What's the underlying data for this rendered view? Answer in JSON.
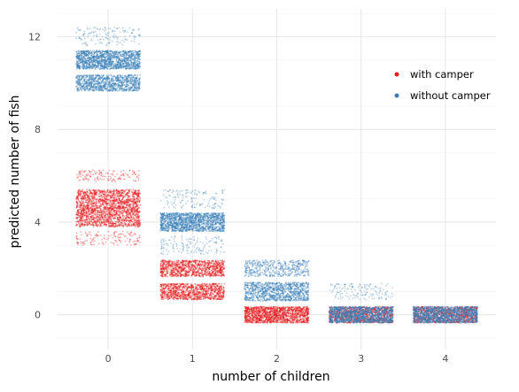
{
  "chart_data": {
    "type": "scatter",
    "title": "",
    "xlabel": "number of children",
    "ylabel": "predicted number of fish",
    "x_categories": [
      0,
      1,
      2,
      3,
      4
    ],
    "xlim": [
      -0.6,
      4.6
    ],
    "ylim": [
      -1.5,
      13.2
    ],
    "y_ticks": [
      0,
      4,
      8,
      12
    ],
    "grid": true,
    "jitter": true,
    "legend": {
      "placement": "right-top"
    },
    "series": [
      {
        "name": "with camper",
        "color": "#e41a1c",
        "bands": [
          {
            "x": 0,
            "y_center": 5.0,
            "y_spread": 0.4,
            "density": "dense"
          },
          {
            "x": 0,
            "y_center": 4.2,
            "y_spread": 0.4,
            "density": "dense"
          },
          {
            "x": 0,
            "y_center": 6.0,
            "y_spread": 0.25,
            "density": "sparse"
          },
          {
            "x": 0,
            "y_center": 3.3,
            "y_spread": 0.3,
            "density": "sparse"
          },
          {
            "x": 1,
            "y_center": 2.0,
            "y_spread": 0.35,
            "density": "dense"
          },
          {
            "x": 1,
            "y_center": 1.0,
            "y_spread": 0.35,
            "density": "dense"
          },
          {
            "x": 2,
            "y_center": 0.0,
            "y_spread": 0.35,
            "density": "very-dense"
          },
          {
            "x": 3,
            "y_center": 0.0,
            "y_spread": 0.35,
            "density": "dense"
          },
          {
            "x": 4,
            "y_center": 0.0,
            "y_spread": 0.35,
            "density": "dense"
          }
        ]
      },
      {
        "name": "without camper",
        "color": "#377eb8",
        "bands": [
          {
            "x": 0,
            "y_center": 11.0,
            "y_spread": 0.4,
            "density": "very-dense"
          },
          {
            "x": 0,
            "y_center": 10.0,
            "y_spread": 0.35,
            "density": "dense"
          },
          {
            "x": 0,
            "y_center": 12.0,
            "y_spread": 0.4,
            "density": "sparse"
          },
          {
            "x": 1,
            "y_center": 4.0,
            "y_spread": 0.4,
            "density": "very-dense"
          },
          {
            "x": 1,
            "y_center": 5.0,
            "y_spread": 0.4,
            "density": "sparse"
          },
          {
            "x": 1,
            "y_center": 3.0,
            "y_spread": 0.4,
            "density": "sparse"
          },
          {
            "x": 2,
            "y_center": 1.0,
            "y_spread": 0.4,
            "density": "dense"
          },
          {
            "x": 2,
            "y_center": 2.0,
            "y_spread": 0.35,
            "density": "medium"
          },
          {
            "x": 3,
            "y_center": 0.0,
            "y_spread": 0.35,
            "density": "very-dense"
          },
          {
            "x": 3,
            "y_center": 1.0,
            "y_spread": 0.35,
            "density": "sparse"
          },
          {
            "x": 4,
            "y_center": 0.0,
            "y_spread": 0.35,
            "density": "very-dense"
          }
        ]
      }
    ]
  }
}
